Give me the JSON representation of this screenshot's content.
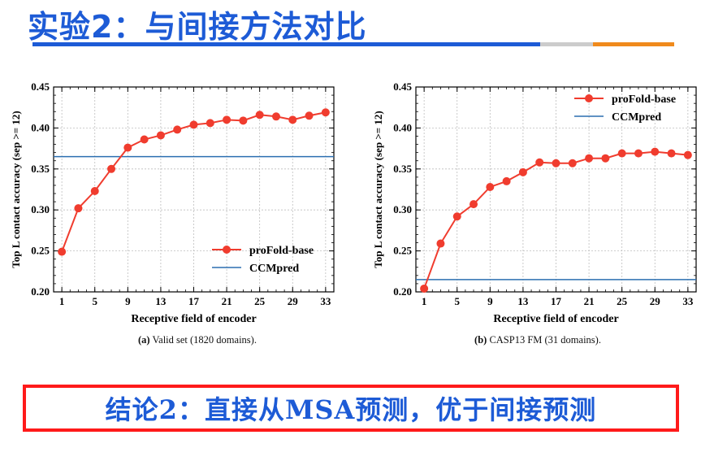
{
  "slide": {
    "title": "实验2：与间接方法对比",
    "title_color": "#1d5bd6",
    "bar_colors": [
      "#1d5bd6",
      "#cccccc",
      "#f08a1c"
    ]
  },
  "captions": [
    {
      "label": "(a)",
      "text": "Valid set (1820 domains)."
    },
    {
      "label": "(b)",
      "text": "CASP13 FM (31 domains)."
    }
  ],
  "conclusion": {
    "text": "结论2：直接从MSA预测，优于间接预测",
    "border_color": "#ff1a1a",
    "text_color": "#1d5bd6"
  },
  "chart_data": [
    {
      "type": "line",
      "xlabel": "Receptive field of encoder",
      "ylabel": "Top L contact accuracy (sep >= 12)",
      "xlim": [
        0,
        34
      ],
      "ylim": [
        0.2,
        0.45
      ],
      "xticks": [
        1,
        5,
        9,
        13,
        17,
        21,
        25,
        29,
        33
      ],
      "yticks": [
        "0.20",
        "0.25",
        "0.30",
        "0.35",
        "0.40",
        "0.45"
      ],
      "grid": true,
      "legend_position": "bottom-right",
      "x": [
        1,
        3,
        5,
        7,
        9,
        11,
        13,
        15,
        17,
        19,
        21,
        23,
        25,
        27,
        29,
        31,
        33
      ],
      "series": [
        {
          "name": "proFold-base",
          "color": "#f03c2e",
          "values": [
            0.249,
            0.302,
            0.323,
            0.35,
            0.376,
            0.386,
            0.391,
            0.398,
            0.404,
            0.406,
            0.41,
            0.409,
            0.416,
            0.414,
            0.41,
            0.415,
            0.419
          ]
        },
        {
          "name": "CCMpred",
          "color": "#2c6fb0",
          "constant": 0.365
        }
      ]
    },
    {
      "type": "line",
      "xlabel": "Receptive field of encoder",
      "ylabel": "Top L contact accuracy (sep >= 12)",
      "xlim": [
        0,
        34
      ],
      "ylim": [
        0.2,
        0.45
      ],
      "xticks": [
        1,
        5,
        9,
        13,
        17,
        21,
        25,
        29,
        33
      ],
      "yticks": [
        "0.20",
        "0.25",
        "0.30",
        "0.35",
        "0.40",
        "0.45"
      ],
      "grid": true,
      "legend_position": "top-right",
      "x": [
        1,
        3,
        5,
        7,
        9,
        11,
        13,
        15,
        17,
        19,
        21,
        23,
        25,
        27,
        29,
        31,
        33
      ],
      "series": [
        {
          "name": "proFold-base",
          "color": "#f03c2e",
          "values": [
            0.204,
            0.259,
            0.292,
            0.307,
            0.328,
            0.335,
            0.346,
            0.358,
            0.357,
            0.357,
            0.363,
            0.363,
            0.369,
            0.369,
            0.371,
            0.369,
            0.367
          ]
        },
        {
          "name": "CCMpred",
          "color": "#2c6fb0",
          "constant": 0.215
        }
      ]
    }
  ]
}
